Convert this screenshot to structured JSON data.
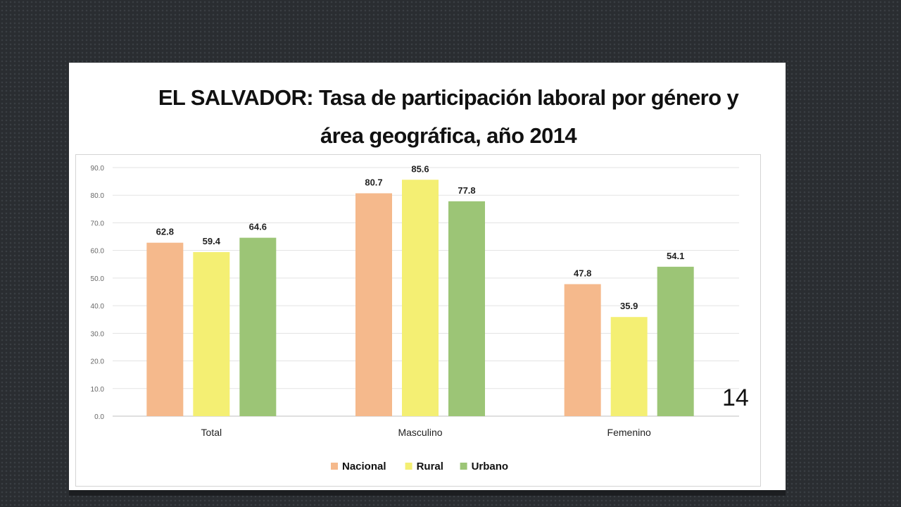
{
  "slide": {
    "title_line1": "EL SALVADOR: Tasa de participación laboral por género y",
    "title_line2": "área geográfica, año 2014",
    "page_number": "14"
  },
  "chart_data": {
    "type": "bar",
    "title": "EL SALVADOR: Tasa de participación laboral por género y área geográfica, año 2014",
    "categories": [
      "Total",
      "Masculino",
      "Femenino"
    ],
    "series": [
      {
        "name": "Nacional",
        "color": "#f5b98c",
        "values": [
          62.8,
          80.7,
          47.8
        ]
      },
      {
        "name": "Rural",
        "color": "#f4ef73",
        "values": [
          59.4,
          85.6,
          35.9
        ]
      },
      {
        "name": "Urbano",
        "color": "#9cc576",
        "values": [
          64.6,
          77.8,
          54.1
        ]
      }
    ],
    "ylim": [
      0,
      90
    ],
    "yticks": [
      "0.0",
      "10.0",
      "20.0",
      "30.0",
      "40.0",
      "50.0",
      "60.0",
      "70.0",
      "80.0",
      "90.0"
    ],
    "xlabel": "",
    "ylabel": "",
    "grid": true,
    "legend_position": "bottom"
  }
}
